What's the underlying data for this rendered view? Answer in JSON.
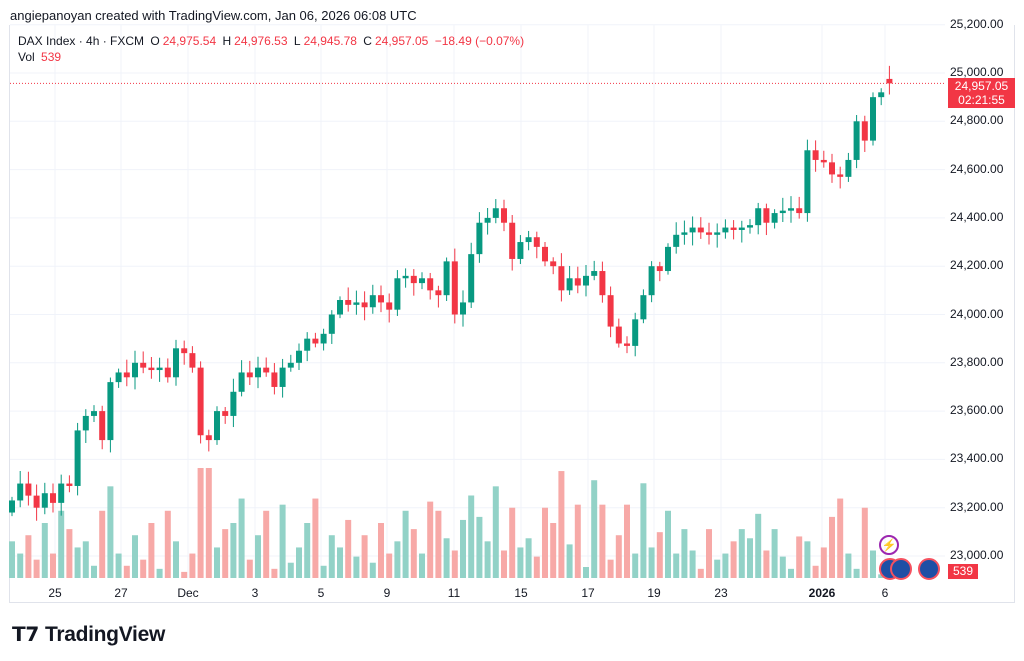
{
  "credit": "angiepanoyan created with TradingView.com, Jan 06, 2026 06:08 UTC",
  "legend": {
    "symbol": "DAX Index · 4h · FXCM",
    "o_label": "O",
    "o": "24,975.54",
    "h_label": "H",
    "h": "24,976.53",
    "l_label": "L",
    "l": "24,945.78",
    "c_label": "C",
    "c": "24,957.05",
    "change": "−18.49 (−0.07%)",
    "vol_label": "Vol",
    "vol": "539"
  },
  "price_axis": [
    "25,200.00",
    "25,000.00",
    "24,800.00",
    "24,600.00",
    "24,400.00",
    "24,200.00",
    "24,000.00",
    "23,800.00",
    "23,600.00",
    "23,400.00",
    "23,200.00",
    "23,000.00"
  ],
  "current_price": "24,957.05",
  "countdown": "02:21:55",
  "current_volume": "539",
  "date_axis": [
    {
      "t": "25"
    },
    {
      "t": "27"
    },
    {
      "t": "Dec"
    },
    {
      "t": "3"
    },
    {
      "t": "5"
    },
    {
      "t": "9"
    },
    {
      "t": "11"
    },
    {
      "t": "15"
    },
    {
      "t": "17"
    },
    {
      "t": "19"
    },
    {
      "t": "23"
    },
    {
      "t": "2026",
      "bold": true
    },
    {
      "t": "6"
    }
  ],
  "logo": "TradingView",
  "colors": {
    "up": "#089981",
    "down": "#f23645",
    "vol_up": "#92d2c7",
    "vol_down": "#f7a9a7"
  },
  "chart_data": {
    "type": "candlestick",
    "ylim": [
      22920,
      25240
    ],
    "first_open": 23180,
    "close": [
      23230,
      23300,
      23250,
      23200,
      23260,
      23220,
      23300,
      23290,
      23520,
      23580,
      23600,
      23480,
      23720,
      23760,
      23740,
      23800,
      23780,
      23770,
      23780,
      23740,
      23860,
      23840,
      23780,
      23500,
      23480,
      23600,
      23580,
      23680,
      23760,
      23740,
      23780,
      23760,
      23700,
      23780,
      23800,
      23850,
      23900,
      23880,
      23920,
      24000,
      24060,
      24040,
      24050,
      24030,
      24080,
      24050,
      24020,
      24150,
      24160,
      24130,
      24150,
      24100,
      24080,
      24220,
      24000,
      24050,
      24250,
      24380,
      24400,
      24440,
      24380,
      24230,
      24300,
      24320,
      24280,
      24220,
      24200,
      24100,
      24150,
      24120,
      24160,
      24180,
      24080,
      23950,
      23880,
      23870,
      23980,
      24080,
      24200,
      24180,
      24280,
      24330,
      24340,
      24360,
      24340,
      24330,
      24340,
      24360,
      24350,
      24360,
      24370,
      24440,
      24380,
      24420,
      24430,
      24440,
      24420,
      24680,
      24640,
      24630,
      24580,
      24570,
      24640,
      24800,
      24720,
      24900,
      24920,
      24957.05
    ],
    "last_open": 24975.54,
    "volume": [
      6000,
      4000,
      7000,
      3000,
      9000,
      4000,
      11000,
      8000,
      5000,
      6000,
      2000,
      11000,
      15000,
      4000,
      2000,
      7000,
      3000,
      9000,
      1500,
      11000,
      6000,
      1000,
      4000,
      18000,
      18000,
      5000,
      8000,
      9000,
      13000,
      3000,
      7000,
      11000,
      1500,
      12000,
      2500,
      5000,
      9000,
      13000,
      2000,
      7000,
      5000,
      9500,
      3500,
      7000,
      2500,
      9000,
      4000,
      6000,
      11000,
      8000,
      4000,
      12500,
      11000,
      6500,
      4500,
      9500,
      13500,
      10000,
      6000,
      15000,
      4500,
      11500,
      5000,
      6500,
      3500,
      11500,
      9000,
      17500,
      5500,
      12000,
      1800,
      16000,
      12000,
      3000,
      7000,
      12000,
      4000,
      15500,
      5000,
      7500,
      11000,
      4000,
      8000,
      4500,
      1500,
      8000,
      3000,
      4000,
      6000,
      8000,
      6500,
      10500,
      4500,
      8000,
      3500,
      1500,
      6800,
      6000,
      2000,
      5000,
      10000,
      13000,
      4000,
      1500,
      11500,
      4500,
      600,
      539
    ]
  }
}
